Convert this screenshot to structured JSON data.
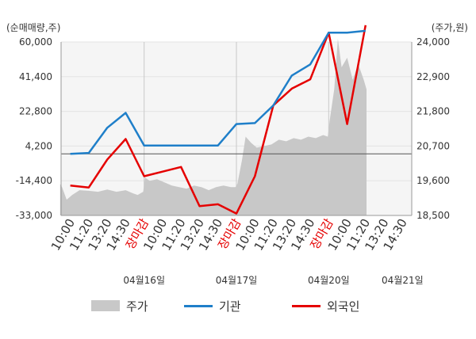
{
  "chart_data": {
    "type": "line",
    "left_axis_label": "(순매매량,주)",
    "right_axis_label": "(주가,원)",
    "left_ticks": [
      "60,000",
      "41,400",
      "22,800",
      "4,200",
      "-14,400",
      "-33,000"
    ],
    "right_ticks": [
      "24,000",
      "22,900",
      "21,800",
      "20,700",
      "19,600",
      "18,500"
    ],
    "ylim_left": [
      -33000,
      60000
    ],
    "ylim_right": [
      18500,
      24000
    ],
    "x_labels": [
      {
        "text": "10:00",
        "red": false
      },
      {
        "text": "11:20",
        "red": false
      },
      {
        "text": "13:20",
        "red": false
      },
      {
        "text": "14:30",
        "red": false
      },
      {
        "text": "장마감",
        "red": true
      },
      {
        "text": "10:00",
        "red": false
      },
      {
        "text": "11:20",
        "red": false
      },
      {
        "text": "13:20",
        "red": false
      },
      {
        "text": "14:30",
        "red": false
      },
      {
        "text": "장마감",
        "red": true
      },
      {
        "text": "10:00",
        "red": false
      },
      {
        "text": "11:20",
        "red": false
      },
      {
        "text": "13:20",
        "red": false
      },
      {
        "text": "14:30",
        "red": false
      },
      {
        "text": "장마감",
        "red": true
      },
      {
        "text": "10:00",
        "red": false
      },
      {
        "text": "11:20",
        "red": false
      },
      {
        "text": "13:20",
        "red": false
      },
      {
        "text": "14:30",
        "red": false
      }
    ],
    "dates": [
      "04월16일",
      "04월17일",
      "04월20일",
      "04월21일"
    ],
    "date_centers": [
      4.5,
      9.5,
      14.5,
      18.5
    ],
    "day_boundaries": [
      4.5,
      9.5,
      14.5
    ],
    "series": [
      {
        "name": "기관",
        "color": "#1f7fc9",
        "axis": "left",
        "x": [
          0.5,
          1.5,
          2.5,
          3.5,
          4.5,
          5.5,
          6.5,
          7.5,
          8.5,
          9.5,
          10.5,
          11.5,
          12.5,
          13.5,
          14.5,
          15.5,
          16.5
        ],
        "values": [
          0,
          500,
          14000,
          22000,
          4500,
          4500,
          4500,
          4500,
          4500,
          16000,
          16500,
          26000,
          42000,
          48000,
          65000,
          65000,
          66000
        ]
      },
      {
        "name": "외국인",
        "color": "#e50000",
        "axis": "left",
        "x": [
          0.5,
          1.5,
          2.5,
          3.5,
          4.5,
          5.5,
          6.5,
          7.5,
          8.5,
          9.5,
          10.5,
          11.5,
          12.5,
          13.5,
          14.5,
          15.5,
          16.5
        ],
        "values": [
          -17000,
          -18000,
          -3000,
          8000,
          -12000,
          -9500,
          -7000,
          -28000,
          -27000,
          -32000,
          -12000,
          26000,
          35000,
          40000,
          65000,
          16000,
          69000
        ]
      },
      {
        "name": "주가",
        "color": "#c8c8c8",
        "axis": "right",
        "x": [
          -0.05,
          0.05,
          0.3,
          0.6,
          1.0,
          1.5,
          2.0,
          2.5,
          3.0,
          3.5,
          3.9,
          4.15,
          4.45,
          4.55,
          4.8,
          5.2,
          5.6,
          6.0,
          6.4,
          6.8,
          7.2,
          7.6,
          8.0,
          8.4,
          8.8,
          9.2,
          9.45,
          9.55,
          9.8,
          10.0,
          10.3,
          10.6,
          11.0,
          11.4,
          11.8,
          12.2,
          12.6,
          13.0,
          13.4,
          13.8,
          14.2,
          14.45,
          14.55,
          14.8,
          15.0,
          15.2,
          15.5,
          15.8,
          16.1,
          16.4,
          16.55
        ],
        "values": [
          19500,
          19400,
          19000,
          19150,
          19300,
          19280,
          19250,
          19320,
          19250,
          19300,
          19200,
          19150,
          19250,
          19700,
          19600,
          19650,
          19550,
          19450,
          19400,
          19350,
          19450,
          19400,
          19300,
          19400,
          19450,
          19400,
          19400,
          19500,
          20250,
          21000,
          20800,
          20650,
          20700,
          20750,
          20900,
          20850,
          20950,
          20900,
          21000,
          20950,
          21050,
          21000,
          21500,
          22500,
          24100,
          23200,
          23500,
          22800,
          23300,
          22800,
          22500
        ]
      }
    ]
  },
  "legend": {
    "price": "주가",
    "institution": "기관",
    "foreign": "외국인"
  }
}
